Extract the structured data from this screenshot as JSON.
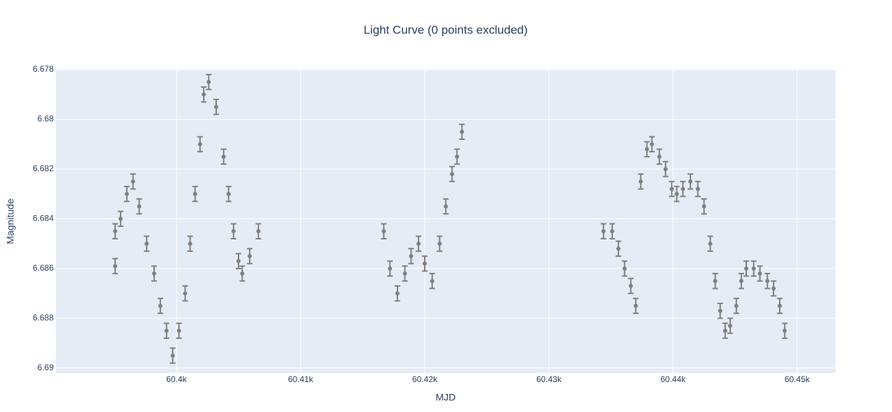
{
  "chart_data": {
    "type": "scatter",
    "title": "Light Curve (0 points excluded)",
    "x_label": "MJD",
    "y_label": "Magnitude",
    "xlim": [
      60390.28,
      60453.09
    ],
    "ylim": [
      6.6902,
      6.678
    ],
    "xticks": [
      {
        "value": 60400,
        "label": "60.4k"
      },
      {
        "value": 60410,
        "label": "60.41k"
      },
      {
        "value": 60420,
        "label": "60.42k"
      },
      {
        "value": 60430,
        "label": "60.43k"
      },
      {
        "value": 60440,
        "label": "60.44k"
      },
      {
        "value": 60450,
        "label": "60.45k"
      }
    ],
    "yticks": [
      6.678,
      6.68,
      6.682,
      6.684,
      6.686,
      6.688,
      6.69
    ],
    "grid": true,
    "series": [
      {
        "color": "#808080",
        "x": [
          60395.06,
          60395.06,
          60395.5,
          60396.0,
          60396.5,
          60397.0,
          60397.6,
          60398.2,
          60398.7,
          60399.2,
          60399.7,
          60400.2,
          60400.7,
          60401.1,
          60401.5,
          60401.9,
          60402.2,
          60402.6,
          60403.2,
          60403.8,
          60404.2,
          60404.6,
          60405.0,
          60405.3,
          60405.9,
          60406.6,
          60416.7,
          60417.2,
          60417.8,
          60418.4,
          60418.9,
          60419.5,
          60420.0,
          60420.6,
          60421.2,
          60421.7,
          60422.2,
          60422.6,
          60423.0,
          60434.4,
          60435.1,
          60435.6,
          60436.1,
          60436.6,
          60437.0,
          60437.4,
          60437.9,
          60438.3,
          60438.9,
          60439.4,
          60439.9,
          60440.3,
          60440.8,
          60441.4,
          60442.0,
          60442.5,
          60443.0,
          60443.4,
          60443.8,
          60444.2,
          60444.6,
          60445.1,
          60445.5,
          60445.9,
          60446.5,
          60447.0,
          60447.6,
          60448.1,
          60448.6,
          60449.0
        ],
        "values": [
          6.6845,
          6.6859,
          6.684,
          6.683,
          6.6825,
          6.6835,
          6.685,
          6.6862,
          6.6875,
          6.6885,
          6.6895,
          6.6885,
          6.687,
          6.685,
          6.683,
          6.681,
          6.679,
          6.6785,
          6.6795,
          6.6815,
          6.683,
          6.6845,
          6.6857,
          6.6862,
          6.6855,
          6.6845,
          6.6845,
          6.686,
          6.687,
          6.6862,
          6.6855,
          6.685,
          6.6858,
          6.6865,
          6.685,
          6.6835,
          6.6822,
          6.6815,
          6.6805,
          6.6845,
          6.6845,
          6.6852,
          6.686,
          6.6867,
          6.6875,
          6.6825,
          6.6812,
          6.681,
          6.6815,
          6.682,
          6.6828,
          6.683,
          6.6828,
          6.6825,
          6.6828,
          6.6835,
          6.685,
          6.6865,
          6.6877,
          6.6885,
          6.6883,
          6.6875,
          6.6865,
          6.686,
          6.686,
          6.6862,
          6.6865,
          6.6868,
          6.6875,
          6.6885
        ],
        "errors": [
          0.0003,
          0.0003,
          0.0003,
          0.0003,
          0.0003,
          0.0003,
          0.0003,
          0.0003,
          0.0003,
          0.0003,
          0.0003,
          0.0003,
          0.0003,
          0.0003,
          0.0003,
          0.0003,
          0.0003,
          0.0003,
          0.0003,
          0.0003,
          0.0003,
          0.0003,
          0.0003,
          0.0003,
          0.0003,
          0.0003,
          0.0003,
          0.0003,
          0.0003,
          0.0003,
          0.0003,
          0.0003,
          0.0003,
          0.0003,
          0.0003,
          0.0003,
          0.0003,
          0.0003,
          0.0003,
          0.0003,
          0.0003,
          0.0003,
          0.0003,
          0.0003,
          0.0003,
          0.0003,
          0.0003,
          0.0003,
          0.0003,
          0.0003,
          0.0003,
          0.0003,
          0.0003,
          0.0003,
          0.0003,
          0.0003,
          0.0003,
          0.0003,
          0.0003,
          0.0003,
          0.0003,
          0.0003,
          0.0003,
          0.0003,
          0.0003,
          0.0003,
          0.0003,
          0.0003,
          0.0003,
          0.0003
        ]
      }
    ]
  }
}
